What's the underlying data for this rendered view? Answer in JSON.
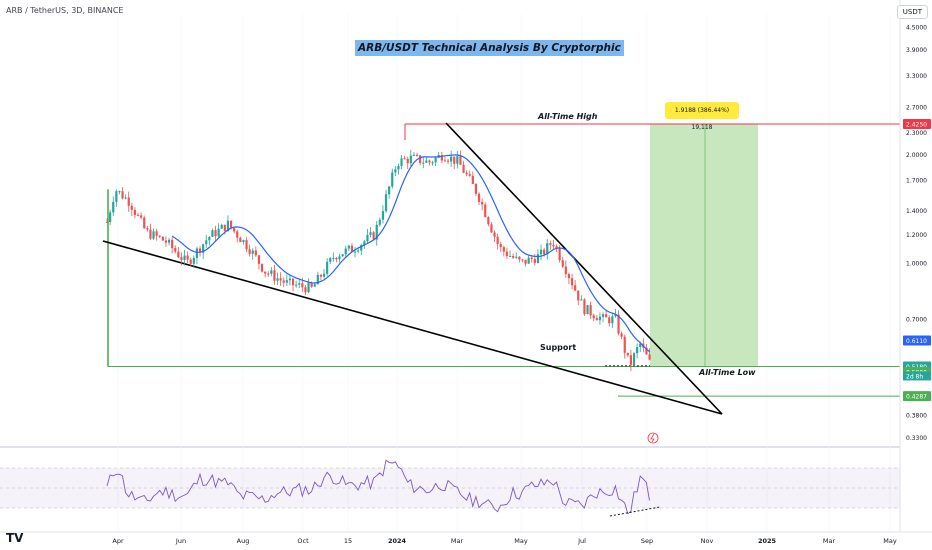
{
  "header": {
    "symbol_line": "ARB / TetherUS, 3D, BINANCE",
    "currency_badge": "USDT"
  },
  "title": "ARB/USDT Technical Analysis By Cryptorphic",
  "annotations": {
    "ath": "All-Time High",
    "support": "Support",
    "atl": "All-Time Low",
    "callout": "1.9188 (386.44%) 19,118"
  },
  "colors": {
    "up": "#26a69a",
    "down": "#ef5350",
    "ma": "#2962ff",
    "ath_line": "#f23645",
    "support_line": "#4caf50",
    "target_fill": "#bfe3b4",
    "rsi_line": "#7e57c2"
  },
  "chart_data": [
    {
      "type": "candlestick",
      "x_ticks": [
        "Apr",
        "Jun",
        "Aug",
        "Oct",
        "15",
        "2024",
        "Mar",
        "May",
        "Jul",
        "Sep",
        "Nov",
        "2025",
        "Mar",
        "May"
      ],
      "y_scale": "log",
      "y_ticks": [
        4.5,
        3.9,
        3.3,
        2.7,
        2.3,
        2.0,
        1.7,
        1.4,
        1.2,
        1.0,
        0.7,
        0.611,
        0.518,
        0.5,
        0.4287,
        0.38,
        0.33,
        0.285
      ],
      "y_tick_labels": [
        "4.5000",
        "3.9000",
        "3.3000",
        "2.7000",
        "2.3000",
        "2.0000",
        "1.7000",
        "1.4000",
        "1.2000",
        "1.0000",
        "0.7000",
        "0.6110",
        "0.5180",
        "0.5000",
        "0.4287",
        "0.3800",
        "0.3300",
        "0.2850"
      ],
      "price_labels": [
        {
          "value": 2.425,
          "text": "2.4250",
          "color": "#f23645"
        },
        {
          "value": 0.611,
          "text": "0.6110",
          "color": "#2962ff"
        },
        {
          "value": 0.518,
          "text": "0.5180",
          "color": "#26a69a"
        },
        {
          "value": 0.5,
          "text": "0.5000",
          "color": "#4caf50"
        },
        {
          "value": 0.4287,
          "text": "0.4287",
          "color": "#4caf50"
        }
      ],
      "countdown": "2d 8h",
      "levels": {
        "all_time_high": 2.425,
        "support": 0.518,
        "all_time_low": 0.4287
      },
      "close_price_path": [
        [
          "2023-03-24",
          1.3
        ],
        [
          "2023-04-01",
          1.6
        ],
        [
          "2023-04-15",
          1.48
        ],
        [
          "2023-05-01",
          1.22
        ],
        [
          "2023-05-20",
          1.15
        ],
        [
          "2023-06-10",
          1.0
        ],
        [
          "2023-07-01",
          1.18
        ],
        [
          "2023-07-20",
          1.28
        ],
        [
          "2023-08-10",
          1.1
        ],
        [
          "2023-08-25",
          0.95
        ],
        [
          "2023-09-15",
          0.88
        ],
        [
          "2023-10-10",
          0.85
        ],
        [
          "2023-11-01",
          1.05
        ],
        [
          "2023-11-20",
          1.1
        ],
        [
          "2023-12-10",
          1.2
        ],
        [
          "2024-01-01",
          1.9
        ],
        [
          "2024-01-15",
          1.95
        ],
        [
          "2024-02-01",
          1.9
        ],
        [
          "2024-02-15",
          2.0
        ],
        [
          "2024-03-01",
          1.9
        ],
        [
          "2024-03-20",
          1.55
        ],
        [
          "2024-04-10",
          1.1
        ],
        [
          "2024-05-01",
          1.0
        ],
        [
          "2024-05-20",
          1.05
        ],
        [
          "2024-06-01",
          1.15
        ],
        [
          "2024-06-15",
          0.95
        ],
        [
          "2024-07-01",
          0.75
        ],
        [
          "2024-07-20",
          0.7
        ],
        [
          "2024-08-01",
          0.7
        ],
        [
          "2024-08-15",
          0.52
        ],
        [
          "2024-08-25",
          0.6
        ],
        [
          "2024-09-05",
          0.52
        ]
      ],
      "moving_average": "blue line tracking price from May 2023 to Sep 2024",
      "target_zone": {
        "from": 0.518,
        "to": 2.425
      }
    },
    {
      "type": "line",
      "name": "RSI",
      "y_ticks": [
        80,
        60,
        40,
        20
      ],
      "y_tick_labels": [
        "80.00",
        "60.00",
        "40.00",
        "20.00"
      ],
      "last_value_text": "35.76",
      "band": [
        30,
        70
      ]
    }
  ]
}
